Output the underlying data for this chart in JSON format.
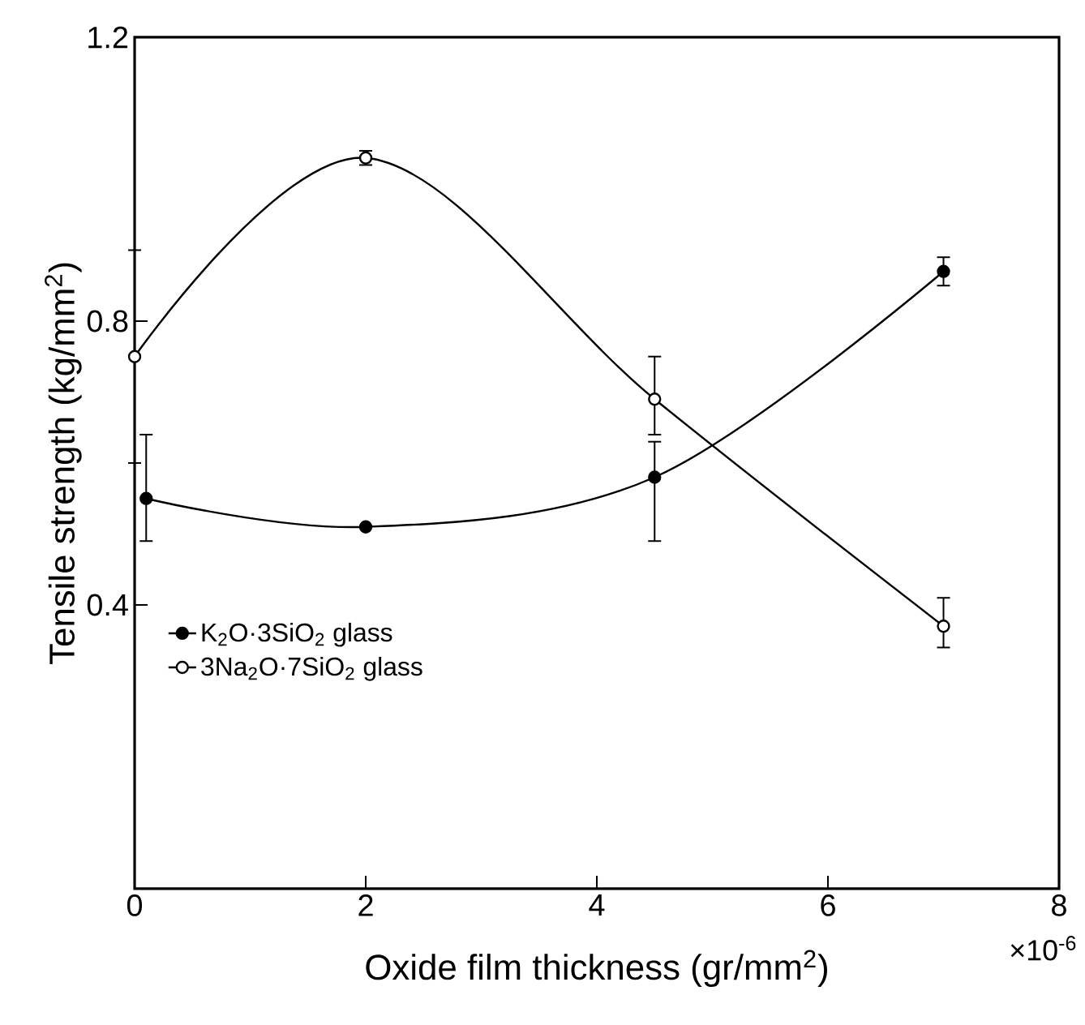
{
  "chart_data": {
    "type": "line",
    "xlabel": "Oxide film thickness (gr/mm$^{2}$)",
    "ylabel": "Tensile strength (kg/mm$^{2}$)",
    "annotations": [
      "×10$^{-6}$"
    ],
    "xlim": [
      0,
      8
    ],
    "xticks": [
      0,
      2,
      4,
      6,
      8
    ],
    "ylim": [
      0,
      1.2
    ],
    "yticks": [
      0.4,
      0.8,
      1.2
    ],
    "grid": false,
    "legend": "left",
    "marker": "circle",
    "line_style": "solid",
    "series": [
      {
        "name": "K$_{2}$O·3SiO$_{2}$ glass",
        "color": "#000000",
        "x": [
          0.1,
          2,
          4.5,
          7
        ],
        "values": [
          0.55,
          0.51,
          0.58,
          0.87
        ],
        "errors": [
          [
            0.49,
            0.64
          ],
          null,
          [
            0.49,
            0.63
          ],
          [
            0.85,
            0.89
          ]
        ]
      },
      {
        "name": "3Na$_{2}$O·7SiO$_{2}$ glass",
        "color": "#000000",
        "x": [
          0,
          2,
          4.5,
          7
        ],
        "values": [
          0.75,
          1.03,
          0.69,
          0.37
        ],
        "errors": [
          [
            0.6,
            0.9
          ],
          [
            1.02,
            1.04
          ],
          [
            0.64,
            0.75
          ],
          [
            0.34,
            0.41
          ]
        ]
      }
    ]
  }
}
